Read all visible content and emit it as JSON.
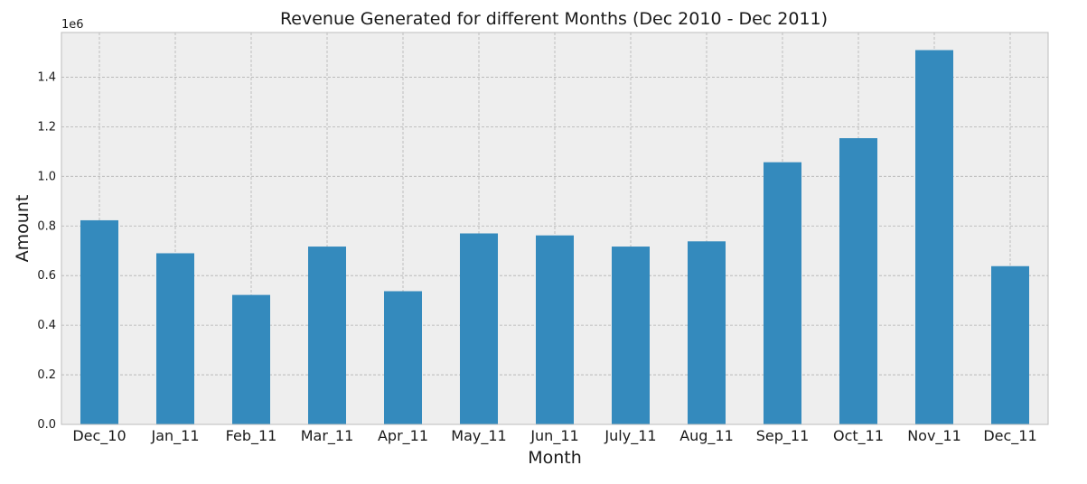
{
  "chart_data": {
    "type": "bar",
    "title": "Revenue Generated for different Months (Dec 2010 - Dec 2011)",
    "xlabel": "Month",
    "ylabel": "Amount",
    "y_offset_label": "1e6",
    "categories": [
      "Dec_10",
      "Jan_11",
      "Feb_11",
      "Mar_11",
      "Apr_11",
      "May_11",
      "Jun_11",
      "July_11",
      "Aug_11",
      "Sep_11",
      "Oct_11",
      "Nov_11",
      "Dec_11"
    ],
    "values": [
      823000,
      690000,
      522000,
      717000,
      537000,
      770000,
      762000,
      717000,
      738000,
      1057000,
      1154000,
      1509000,
      638000
    ],
    "ylim": [
      0,
      1580000
    ],
    "yticks": [
      0,
      200000,
      400000,
      600000,
      800000,
      1000000,
      1200000,
      1400000
    ],
    "ytick_labels": [
      "0.0",
      "0.2",
      "0.4",
      "0.6",
      "0.8",
      "1.0",
      "1.2",
      "1.4"
    ],
    "grid": true,
    "colors": {
      "bar": "#348abd",
      "plot_bg": "#eeeeee",
      "grid": "#b2b2b2",
      "frame": "#bcbcbc"
    }
  }
}
